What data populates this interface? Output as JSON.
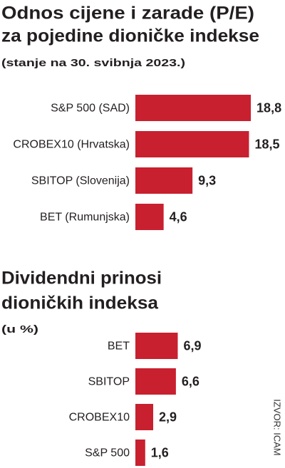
{
  "chart_data": [
    {
      "type": "bar",
      "orientation": "horizontal",
      "title": [
        "Odnos cijene i zarade (P/E)",
        "za pojedine dioničke indekse"
      ],
      "subtitle": "(stanje na 30. svibnja 2023.)",
      "categories": [
        "S&P 500 (SAD)",
        "CROBEX10 (Hrvatska)",
        "SBITOP (Slovenija)",
        "BET (Rumunjska)"
      ],
      "values": [
        18.8,
        18.5,
        9.3,
        4.6
      ],
      "value_labels": [
        "18,8",
        "18,5",
        "9,3",
        "4,6"
      ],
      "color": "#c8202f"
    },
    {
      "type": "bar",
      "orientation": "horizontal",
      "title": [
        "Dividendni prinosi",
        "dioničkih indeksa"
      ],
      "subtitle": "(u %)",
      "categories": [
        "BET",
        "SBITOP",
        "CROBEX10",
        "S&P 500"
      ],
      "values": [
        6.9,
        6.6,
        2.9,
        1.6
      ],
      "value_labels": [
        "6,9",
        "6,6",
        "2,9",
        "1,6"
      ],
      "color": "#c8202f"
    }
  ],
  "source": "IZVOR: ICAM"
}
